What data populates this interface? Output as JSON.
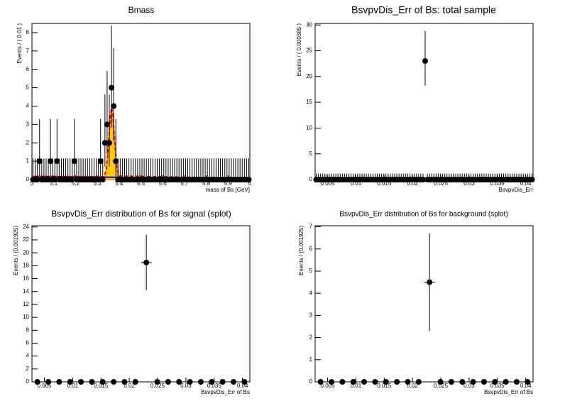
{
  "chart_data": [
    {
      "type": "errorbar",
      "title": "Bmass",
      "x_label": "mass of Bs [GeV]",
      "y_label": "Events / ( 0.01 )",
      "xlim": [
        5,
        6
      ],
      "ylim": [
        0,
        8.5
      ],
      "xticks": [
        5,
        5.1,
        5.2,
        5.3,
        5.4,
        5.5,
        5.6,
        5.7,
        5.8,
        5.9,
        6
      ],
      "yticks": [
        0,
        1,
        2,
        3,
        4,
        5,
        6,
        7,
        8
      ],
      "color": "#000000",
      "x": [
        5.005,
        5.015,
        5.025,
        5.035,
        5.045,
        5.055,
        5.065,
        5.075,
        5.085,
        5.095,
        5.105,
        5.115,
        5.125,
        5.135,
        5.145,
        5.155,
        5.165,
        5.175,
        5.185,
        5.195,
        5.205,
        5.215,
        5.225,
        5.235,
        5.245,
        5.255,
        5.265,
        5.275,
        5.285,
        5.295,
        5.305,
        5.315,
        5.325,
        5.335,
        5.345,
        5.355,
        5.365,
        5.375,
        5.385,
        5.395,
        5.405,
        5.415,
        5.425,
        5.435,
        5.445,
        5.455,
        5.465,
        5.475,
        5.485,
        5.495,
        5.505,
        5.515,
        5.525,
        5.535,
        5.545,
        5.555,
        5.565,
        5.575,
        5.585,
        5.595,
        5.605,
        5.615,
        5.625,
        5.635,
        5.645,
        5.655,
        5.665,
        5.675,
        5.685,
        5.695,
        5.705,
        5.715,
        5.725,
        5.735,
        5.745,
        5.755,
        5.765,
        5.775,
        5.785,
        5.795,
        5.805,
        5.815,
        5.825,
        5.835,
        5.845,
        5.855,
        5.865,
        5.875,
        5.885,
        5.895,
        5.905,
        5.915,
        5.925,
        5.935,
        5.945,
        5.955,
        5.965,
        5.975,
        5.985,
        5.995
      ],
      "values": [
        0,
        0,
        0,
        1,
        0,
        0,
        0,
        0,
        1,
        0,
        0,
        1,
        0,
        0,
        0,
        0,
        0,
        0,
        0,
        1,
        0,
        0,
        0,
        0,
        0,
        0,
        0,
        0,
        0,
        0,
        0,
        1,
        0,
        2,
        3,
        2,
        5,
        4,
        1,
        0,
        0,
        0,
        0,
        0,
        0,
        0,
        0,
        0,
        0,
        0,
        0,
        0,
        0,
        0,
        0,
        0,
        0,
        0,
        0,
        0,
        0,
        0,
        0,
        0,
        0,
        0,
        0,
        0,
        0,
        0,
        0,
        0,
        0,
        0,
        0,
        0,
        0,
        0,
        0,
        0,
        0,
        0,
        0,
        0,
        0,
        0,
        0,
        0,
        0,
        0,
        0,
        0,
        0,
        0,
        0,
        0,
        0,
        0,
        0,
        0
      ],
      "err_low": [
        0,
        0,
        0,
        0.83,
        0,
        0,
        0,
        0,
        0.83,
        0,
        0,
        0.83,
        0,
        0,
        0,
        0,
        0,
        0,
        0,
        0.83,
        0,
        0,
        0,
        0,
        0,
        0,
        0,
        0,
        0,
        0,
        0,
        0.83,
        0,
        1.29,
        1.63,
        1.29,
        2.16,
        1.91,
        0.83,
        0,
        0,
        0,
        0,
        0,
        0,
        0,
        0,
        0,
        0,
        0,
        0,
        0,
        0,
        0,
        0,
        0,
        0,
        0,
        0,
        0,
        0,
        0,
        0,
        0,
        0,
        0,
        0,
        0,
        0,
        0,
        0,
        0,
        0,
        0,
        0,
        0,
        0,
        0,
        0,
        0,
        0,
        0,
        0,
        0,
        0,
        0,
        0,
        0,
        0,
        0,
        0,
        0,
        0,
        0,
        0,
        0,
        0,
        0,
        0,
        0
      ],
      "err_high": [
        1.15,
        1.15,
        1.15,
        2.3,
        1.15,
        1.15,
        1.15,
        1.15,
        2.3,
        1.15,
        1.15,
        2.3,
        1.15,
        1.15,
        1.15,
        1.15,
        1.15,
        1.15,
        1.15,
        2.3,
        1.15,
        1.15,
        1.15,
        1.15,
        1.15,
        1.15,
        1.15,
        1.15,
        1.15,
        1.15,
        1.15,
        2.3,
        1.15,
        2.64,
        2.92,
        2.64,
        3.38,
        3.16,
        2.3,
        1.15,
        1.15,
        1.15,
        1.15,
        1.15,
        1.15,
        1.15,
        1.15,
        1.15,
        1.15,
        1.15,
        1.15,
        1.15,
        1.15,
        1.15,
        1.15,
        1.15,
        1.15,
        1.15,
        1.15,
        1.15,
        1.15,
        1.15,
        1.15,
        1.15,
        1.15,
        1.15,
        1.15,
        1.15,
        1.15,
        1.15,
        1.15,
        1.15,
        1.15,
        1.15,
        1.15,
        1.15,
        1.15,
        1.15,
        1.15,
        1.15,
        1.15,
        1.15,
        1.15,
        1.15,
        1.15,
        1.15,
        1.15,
        1.15,
        1.15,
        1.15,
        1.15,
        1.15,
        1.15,
        1.15,
        1.15,
        1.15,
        1.15,
        1.15,
        1.15,
        1.15
      ],
      "curves": [
        {
          "color": "#ffa500",
          "fill": true,
          "x": [
            5.33,
            5.34,
            5.35,
            5.355,
            5.36,
            5.366,
            5.372,
            5.38,
            5.39,
            5.4
          ],
          "values": [
            0.04,
            0.36,
            1.56,
            2.5,
            3.35,
            3.8,
            3.35,
            1.93,
            0.51,
            0.07
          ]
        },
        {
          "color": "#0000ff",
          "x": [
            5,
            5.5,
            6
          ],
          "values": [
            0.17,
            0.11,
            0.07
          ]
        },
        {
          "color": "#ff0000",
          "dash": true,
          "x": [
            5,
            5.33,
            5.34,
            5.35,
            5.355,
            5.36,
            5.366,
            5.372,
            5.38,
            5.39,
            5.4,
            6
          ],
          "values": [
            0.17,
            0.16,
            0.48,
            1.68,
            2.62,
            3.47,
            3.92,
            3.47,
            2.05,
            0.63,
            0.19,
            0.07
          ]
        }
      ]
    },
    {
      "type": "errorbar",
      "title": "BsvpvDis_Err of Bs: total sample",
      "x_label": "BsvpvDis_Err",
      "y_label": "Events / ( 0.000385 )",
      "xlim": [
        0.0028,
        0.0413
      ],
      "ylim": [
        0,
        30.3
      ],
      "xticks": [
        0.005,
        0.01,
        0.015,
        0.02,
        0.025,
        0.03,
        0.035,
        0.04
      ],
      "yticks": [
        0,
        5,
        10,
        15,
        20,
        25,
        30
      ],
      "color": "#000000",
      "x": [
        0.00299,
        0.00338,
        0.00376,
        0.00415,
        0.00453,
        0.00492,
        0.0053,
        0.00569,
        0.00607,
        0.00646,
        0.00684,
        0.00723,
        0.00761,
        0.008,
        0.00838,
        0.00877,
        0.00915,
        0.00954,
        0.00992,
        0.01031,
        0.01069,
        0.01108,
        0.01146,
        0.01185,
        0.01223,
        0.01262,
        0.013,
        0.01339,
        0.01377,
        0.01416,
        0.01454,
        0.01493,
        0.01531,
        0.0157,
        0.01608,
        0.01647,
        0.01685,
        0.01724,
        0.01762,
        0.01801,
        0.01839,
        0.01878,
        0.01916,
        0.01955,
        0.01993,
        0.02032,
        0.0207,
        0.02109,
        0.02147,
        0.02186,
        0.02224,
        0.02263,
        0.02301,
        0.0234,
        0.02378,
        0.02417,
        0.02455,
        0.02494,
        0.02532,
        0.02571,
        0.02609,
        0.02648,
        0.02686,
        0.02725,
        0.02763,
        0.02802,
        0.0284,
        0.02879,
        0.02917,
        0.02956,
        0.02994,
        0.03033,
        0.03071,
        0.0311,
        0.03148,
        0.03187,
        0.03225,
        0.03264,
        0.03302,
        0.03341,
        0.03379,
        0.03418,
        0.03456,
        0.03495,
        0.03533,
        0.03572,
        0.0361,
        0.03649,
        0.03687,
        0.03726,
        0.03764,
        0.03803,
        0.03841,
        0.0388,
        0.03918,
        0.03957,
        0.03995,
        0.04034,
        0.04072,
        0.04111
      ],
      "values": [
        0,
        0,
        0,
        0,
        0,
        0,
        0,
        0,
        0,
        0,
        0,
        0,
        0,
        0,
        0,
        0,
        0,
        0,
        0,
        0,
        0,
        0,
        0,
        0,
        0,
        0,
        0,
        0,
        0,
        0,
        0,
        0,
        0,
        0,
        0,
        0,
        0,
        0,
        0,
        0,
        0,
        0,
        0,
        0,
        0,
        0,
        0,
        0,
        0,
        0,
        23,
        0,
        0,
        0,
        0,
        0,
        0,
        0,
        0,
        0,
        0,
        0,
        0,
        0,
        0,
        0,
        0,
        0,
        0,
        0,
        0,
        0,
        0,
        0,
        0,
        0,
        0,
        0,
        0,
        0,
        0,
        0,
        0,
        0,
        0,
        0,
        0,
        0,
        0,
        0,
        0,
        0,
        0,
        0,
        0,
        0,
        0,
        0,
        0,
        0
      ],
      "err_low": [
        0,
        0,
        0,
        0,
        0,
        0,
        0,
        0,
        0,
        0,
        0,
        0,
        0,
        0,
        0,
        0,
        0,
        0,
        0,
        0,
        0,
        0,
        0,
        0,
        0,
        0,
        0,
        0,
        0,
        0,
        0,
        0,
        0,
        0,
        0,
        0,
        0,
        0,
        0,
        0,
        0,
        0,
        0,
        0,
        0,
        0,
        0,
        0,
        0,
        0,
        4.77,
        0,
        0,
        0,
        0,
        0,
        0,
        0,
        0,
        0,
        0,
        0,
        0,
        0,
        0,
        0,
        0,
        0,
        0,
        0,
        0,
        0,
        0,
        0,
        0,
        0,
        0,
        0,
        0,
        0,
        0,
        0,
        0,
        0,
        0,
        0,
        0,
        0,
        0,
        0,
        0,
        0,
        0,
        0,
        0,
        0,
        0,
        0,
        0,
        0
      ],
      "err_high": [
        1.15,
        1.15,
        1.15,
        1.15,
        1.15,
        1.15,
        1.15,
        1.15,
        1.15,
        1.15,
        1.15,
        1.15,
        1.15,
        1.15,
        1.15,
        1.15,
        1.15,
        1.15,
        1.15,
        1.15,
        1.15,
        1.15,
        1.15,
        1.15,
        1.15,
        1.15,
        1.15,
        1.15,
        1.15,
        1.15,
        1.15,
        1.15,
        1.15,
        1.15,
        1.15,
        1.15,
        1.15,
        1.15,
        1.15,
        1.15,
        1.15,
        1.15,
        1.15,
        1.15,
        1.15,
        1.15,
        1.15,
        1.15,
        1.15,
        1.15,
        5.86,
        1.15,
        1.15,
        1.15,
        1.15,
        1.15,
        1.15,
        1.15,
        1.15,
        1.15,
        1.15,
        1.15,
        1.15,
        1.15,
        1.15,
        1.15,
        1.15,
        1.15,
        1.15,
        1.15,
        1.15,
        1.15,
        1.15,
        1.15,
        1.15,
        1.15,
        1.15,
        1.15,
        1.15,
        1.15,
        1.15,
        1.15,
        1.15,
        1.15,
        1.15,
        1.15,
        1.15,
        1.15,
        1.15,
        1.15,
        1.15,
        1.15,
        1.15,
        1.15,
        1.15,
        1.15,
        1.15,
        1.15,
        1.15,
        1.15
      ]
    },
    {
      "type": "errorbar",
      "title": "BsvpvDis_Err distribution of Bs for signal (splot)",
      "x_label": "BsvpvDis_Err of Bs",
      "y_label": "Events / (0.001925)",
      "xlim": [
        0.0028,
        0.0413
      ],
      "ylim": [
        0,
        24.2
      ],
      "xticks": [
        0.005,
        0.01,
        0.015,
        0.02,
        0.025,
        0.03,
        0.035,
        0.04
      ],
      "yticks": [
        0,
        2,
        4,
        6,
        8,
        10,
        12,
        14,
        16,
        18,
        20,
        22,
        24
      ],
      "color": "#000000",
      "x_err": 0.00096,
      "x": [
        0.00376,
        0.00569,
        0.00761,
        0.00954,
        0.01146,
        0.01339,
        0.01531,
        0.01724,
        0.01916,
        0.02109,
        0.02301,
        0.02494,
        0.02686,
        0.02879,
        0.03071,
        0.03264,
        0.03456,
        0.03649,
        0.03841,
        0.04034
      ],
      "values": [
        0,
        0,
        0,
        0,
        0,
        0,
        0,
        0,
        0,
        0,
        18.5,
        0,
        0,
        0,
        0,
        0,
        0,
        0,
        0,
        0
      ],
      "err": [
        0,
        0,
        0,
        0,
        0,
        0,
        0,
        0,
        0,
        0,
        4.3,
        0,
        0,
        0,
        0,
        0,
        0,
        0,
        0,
        0
      ]
    },
    {
      "type": "errorbar",
      "title": "BsvpvDis_Err distribution of Bs for background (splot)",
      "x_label": "BsvpvDis_Err of Bs",
      "y_label": "Events / (0.001925)",
      "xlim": [
        0.0028,
        0.0413
      ],
      "ylim": [
        0,
        7.05
      ],
      "xticks": [
        0.005,
        0.01,
        0.015,
        0.02,
        0.025,
        0.03,
        0.035,
        0.04
      ],
      "yticks": [
        0,
        1,
        2,
        3,
        4,
        5,
        6,
        7
      ],
      "color": "#000000",
      "x_err": 0.00096,
      "x": [
        0.00376,
        0.00569,
        0.00761,
        0.00954,
        0.01146,
        0.01339,
        0.01531,
        0.01724,
        0.01916,
        0.02109,
        0.02301,
        0.02494,
        0.02686,
        0.02879,
        0.03071,
        0.03264,
        0.03456,
        0.03649,
        0.03841,
        0.04034
      ],
      "values": [
        0,
        0,
        0,
        0,
        0,
        0,
        0,
        0,
        0,
        0,
        4.5,
        0,
        0,
        0,
        0,
        0,
        0,
        0,
        0,
        0
      ],
      "err": [
        0,
        0,
        0,
        0,
        0,
        0,
        0,
        0,
        0,
        0,
        2.2,
        0,
        0,
        0,
        0,
        0,
        0,
        0,
        0,
        0
      ]
    }
  ]
}
